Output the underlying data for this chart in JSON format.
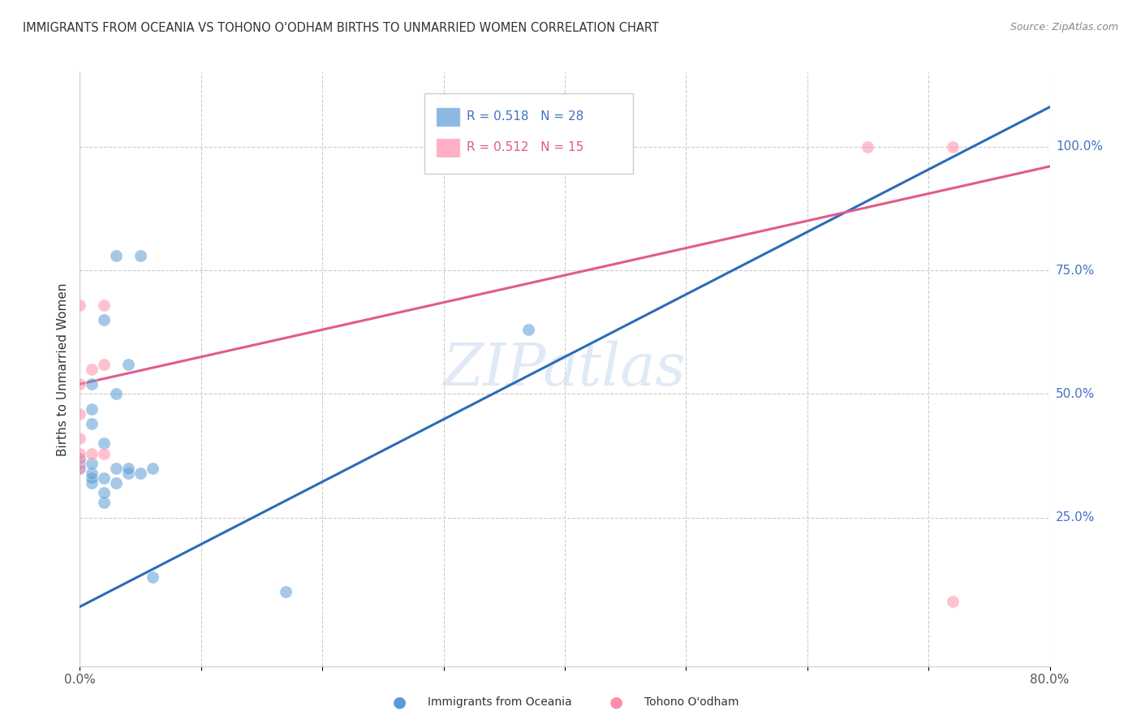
{
  "title": "IMMIGRANTS FROM OCEANIA VS TOHONO O'ODHAM BIRTHS TO UNMARRIED WOMEN CORRELATION CHART",
  "source": "Source: ZipAtlas.com",
  "xlabel": "",
  "ylabel": "Births to Unmarried Women",
  "legend_label_blue": "Immigrants from Oceania",
  "legend_label_pink": "Tohono O'odham",
  "R_blue": 0.518,
  "N_blue": 28,
  "R_pink": 0.512,
  "N_pink": 15,
  "xlim": [
    0.0,
    0.8
  ],
  "ylim": [
    -0.05,
    1.15
  ],
  "ytick_labels": [
    "25.0%",
    "50.0%",
    "75.0%",
    "100.0%"
  ],
  "ytick_positions": [
    0.25,
    0.5,
    0.75,
    1.0
  ],
  "blue_color": "#5B9BD5",
  "pink_color": "#FF8FAB",
  "blue_line_color": "#2B6CB8",
  "pink_line_color": "#E05C8A",
  "watermark_text": "ZIPatlas",
  "blue_scatter_x": [
    0.0,
    0.0,
    0.0,
    0.01,
    0.01,
    0.01,
    0.01,
    0.01,
    0.01,
    0.01,
    0.02,
    0.02,
    0.02,
    0.02,
    0.02,
    0.03,
    0.03,
    0.03,
    0.03,
    0.04,
    0.04,
    0.04,
    0.05,
    0.05,
    0.06,
    0.06,
    0.17,
    0.37
  ],
  "blue_scatter_y": [
    0.35,
    0.36,
    0.37,
    0.32,
    0.33,
    0.34,
    0.36,
    0.44,
    0.47,
    0.52,
    0.28,
    0.3,
    0.33,
    0.4,
    0.65,
    0.32,
    0.35,
    0.5,
    0.78,
    0.34,
    0.35,
    0.56,
    0.34,
    0.78,
    0.13,
    0.35,
    0.1,
    0.63
  ],
  "pink_scatter_x": [
    0.0,
    0.0,
    0.0,
    0.0,
    0.0,
    0.0,
    0.0,
    0.01,
    0.01,
    0.02,
    0.02,
    0.02,
    0.65,
    0.72,
    0.72
  ],
  "pink_scatter_y": [
    0.35,
    0.37,
    0.38,
    0.41,
    0.46,
    0.52,
    0.68,
    0.38,
    0.55,
    0.38,
    0.56,
    0.68,
    1.0,
    1.0,
    0.08
  ],
  "blue_trendline_x": [
    0.0,
    0.8
  ],
  "blue_trendline_y": [
    0.07,
    1.08
  ],
  "pink_trendline_x": [
    0.0,
    0.8
  ],
  "pink_trendline_y": [
    0.52,
    0.96
  ]
}
